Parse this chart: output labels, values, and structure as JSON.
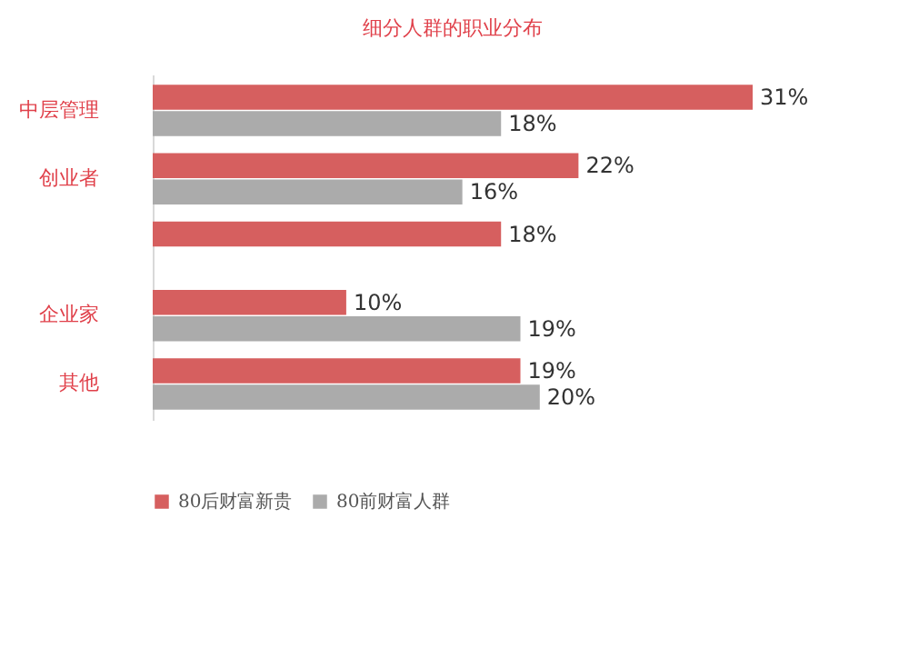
{
  "chart_data": {
    "type": "bar",
    "orientation": "horizontal",
    "title": "细分人群的职业分布",
    "categories": [
      "中层管理",
      "创业者",
      null,
      "企业家",
      "其他"
    ],
    "series": [
      {
        "name": "80后财富新贵",
        "color": "#d65f5f",
        "values": [
          31,
          22,
          18,
          10,
          19
        ],
        "value_labels": [
          "31%",
          "22%",
          "18%",
          "10%",
          "19%"
        ]
      },
      {
        "name": "80前财富人群",
        "color": "#ababab",
        "values": [
          18,
          16,
          null,
          19,
          20
        ],
        "value_labels": [
          "18%",
          "16%",
          null,
          "19%",
          "20%"
        ]
      }
    ],
    "legend": "bottom"
  }
}
